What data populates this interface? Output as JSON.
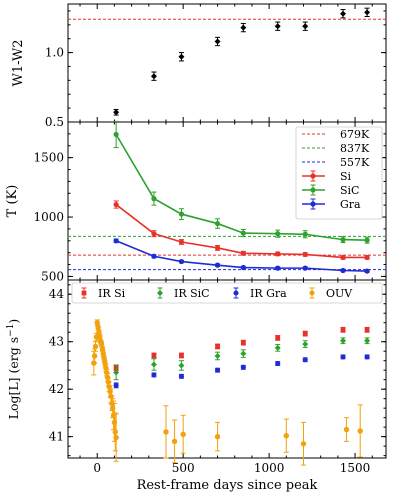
{
  "chart_data": [
    {
      "type": "scatter",
      "panel": "top",
      "ylabel": "W1-W2",
      "ylim": [
        0.5,
        1.35
      ],
      "yticks": [
        0.5,
        1.0
      ],
      "ytick_labels": [
        "0.5",
        "1.0"
      ],
      "reference_lines": [
        {
          "y": 1.24,
          "color": "#e8312a",
          "style": "dashed"
        }
      ],
      "series": [
        {
          "color": "#000000",
          "marker": "diamond",
          "x": [
            110,
            330,
            490,
            700,
            850,
            1050,
            1210,
            1430,
            1570
          ],
          "y": [
            0.57,
            0.83,
            0.97,
            1.08,
            1.18,
            1.19,
            1.19,
            1.28,
            1.29
          ],
          "err": [
            0.02,
            0.03,
            0.03,
            0.03,
            0.03,
            0.03,
            0.03,
            0.03,
            0.03
          ]
        }
      ]
    },
    {
      "type": "line",
      "panel": "middle",
      "ylabel": "T (K)",
      "ylim": [
        470,
        1800
      ],
      "yticks": [
        500,
        1000,
        1500
      ],
      "ytick_labels": [
        "500",
        "1000",
        "1500"
      ],
      "legend_position": "top-right",
      "reference_lines": [
        {
          "name": "679K",
          "y": 679,
          "color": "#e8312a",
          "style": "dashed"
        },
        {
          "name": "837K",
          "y": 837,
          "color": "#2ea12e",
          "style": "dashed"
        },
        {
          "name": "557K",
          "y": 557,
          "color": "#1f2bd6",
          "style": "dashed"
        }
      ],
      "series": [
        {
          "name": "Si",
          "color": "#e8312a",
          "x": [
            110,
            330,
            490,
            700,
            850,
            1050,
            1210,
            1430,
            1570
          ],
          "y": [
            1105,
            860,
            790,
            740,
            695,
            690,
            685,
            660,
            660
          ],
          "err": [
            30,
            25,
            20,
            20,
            15,
            15,
            15,
            15,
            15
          ]
        },
        {
          "name": "SiC",
          "color": "#2ea12e",
          "x": [
            110,
            330,
            490,
            700,
            850,
            1050,
            1210,
            1430,
            1570
          ],
          "y": [
            1695,
            1155,
            1025,
            945,
            865,
            860,
            855,
            810,
            805
          ],
          "err": [
            110,
            55,
            45,
            40,
            30,
            30,
            30,
            25,
            25
          ]
        },
        {
          "name": "Gra",
          "color": "#1f2bd6",
          "x": [
            110,
            330,
            490,
            700,
            850,
            1050,
            1210,
            1430,
            1570
          ],
          "y": [
            800,
            670,
            625,
            595,
            575,
            570,
            570,
            550,
            545
          ],
          "err": [
            15,
            12,
            10,
            10,
            10,
            10,
            10,
            10,
            10
          ]
        }
      ]
    },
    {
      "type": "scatter",
      "panel": "bottom",
      "xlabel": "Rest-frame days since peak",
      "ylabel_main": "Log[L] (erg s",
      "ylabel_exp": "−1",
      "ylabel_close": ")",
      "xlim": [
        -170,
        1680
      ],
      "ylim": [
        40.55,
        44.3
      ],
      "xticks": [
        0,
        500,
        1000,
        1500
      ],
      "xtick_labels": [
        "0",
        "500",
        "1000",
        "1500"
      ],
      "yticks": [
        41,
        42,
        43,
        44
      ],
      "ytick_labels": [
        "41",
        "42",
        "43",
        "44"
      ],
      "legend_position": "top",
      "series": [
        {
          "name": "IR Si",
          "color": "#e8312a",
          "marker": "square",
          "x": [
            110,
            330,
            490,
            700,
            850,
            1050,
            1210,
            1430,
            1570
          ],
          "y": [
            42.45,
            42.71,
            42.71,
            42.9,
            42.98,
            43.08,
            43.17,
            43.25,
            43.25
          ],
          "err": [
            0.06,
            0.05,
            0.05,
            0.05,
            0.05,
            0.05,
            0.05,
            0.05,
            0.05
          ]
        },
        {
          "name": "IR SiC",
          "color": "#2ea12e",
          "marker": "diamond",
          "x": [
            110,
            330,
            490,
            700,
            850,
            1050,
            1210,
            1430,
            1570
          ],
          "y": [
            42.35,
            42.52,
            42.5,
            42.7,
            42.75,
            42.87,
            42.95,
            43.02,
            43.02
          ],
          "err": [
            0.15,
            0.12,
            0.1,
            0.08,
            0.08,
            0.07,
            0.07,
            0.06,
            0.06
          ]
        },
        {
          "name": "IR Gra",
          "color": "#1f2bd6",
          "marker": "circle",
          "x": [
            110,
            330,
            490,
            700,
            850,
            1050,
            1210,
            1430,
            1570
          ],
          "y": [
            42.08,
            42.3,
            42.27,
            42.4,
            42.46,
            42.54,
            42.62,
            42.68,
            42.68
          ],
          "err": [
            0.05,
            0.04,
            0.04,
            0.04,
            0.04,
            0.04,
            0.04,
            0.04,
            0.04
          ]
        },
        {
          "name": "OUV",
          "color": "#f2a20c",
          "marker": "circle",
          "x": [
            -20,
            -15,
            -10,
            -5,
            0,
            5,
            10,
            15,
            20,
            25,
            30,
            35,
            40,
            45,
            50,
            55,
            60,
            65,
            70,
            75,
            80,
            85,
            90,
            95,
            100,
            105,
            110,
            400,
            450,
            500,
            700,
            1100,
            1200,
            1450,
            1530
          ],
          "y": [
            42.55,
            42.7,
            42.9,
            43.1,
            43.4,
            43.3,
            43.2,
            43.1,
            43.0,
            42.95,
            42.85,
            42.75,
            42.65,
            42.55,
            42.45,
            42.35,
            42.25,
            42.15,
            42.05,
            41.95,
            41.85,
            41.7,
            41.6,
            41.45,
            41.3,
            41.1,
            40.98,
            41.1,
            40.9,
            41.05,
            41.0,
            41.02,
            40.85,
            41.15,
            41.12
          ],
          "err": [
            0.25,
            0.15,
            0.1,
            0.08,
            0.06,
            0.05,
            0.05,
            0.05,
            0.05,
            0.05,
            0.05,
            0.06,
            0.06,
            0.06,
            0.07,
            0.07,
            0.08,
            0.08,
            0.1,
            0.12,
            0.15,
            0.15,
            0.2,
            0.3,
            0.4,
            0.4,
            0.5,
            0.55,
            0.45,
            0.4,
            0.3,
            0.35,
            0.45,
            0.25,
            0.55
          ]
        }
      ]
    }
  ]
}
